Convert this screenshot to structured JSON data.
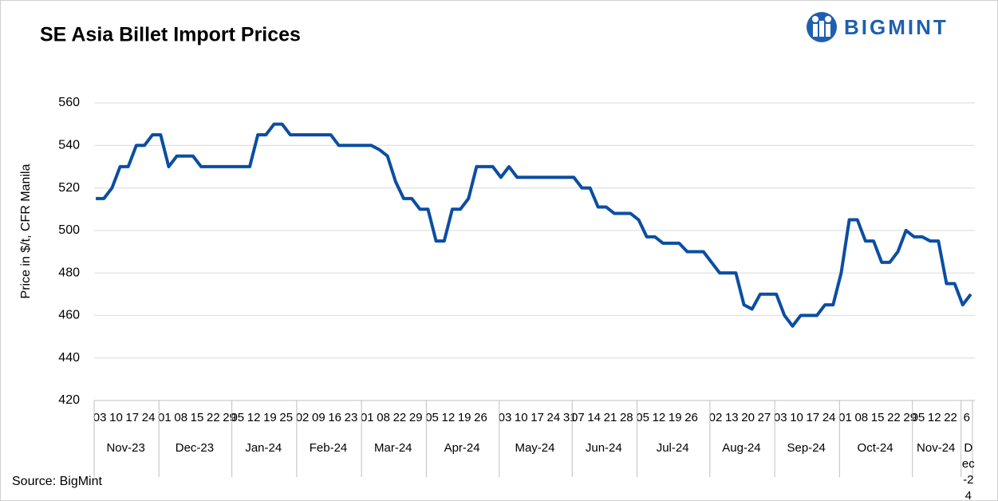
{
  "brand": "BIGMINT",
  "source": "Source: BigMint",
  "chart_data": {
    "type": "line",
    "title": "SE Asia Billet Import Prices",
    "y_label": "Price in $/t, CFR Manila",
    "categories": [
      "03",
      null,
      "10",
      null,
      "17",
      null,
      "24",
      null,
      "01",
      null,
      "08",
      null,
      "15",
      null,
      "22",
      null,
      "29",
      "05",
      null,
      "12",
      null,
      "19",
      null,
      "25",
      null,
      "02",
      null,
      "09",
      null,
      "16",
      null,
      "23",
      null,
      "01",
      null,
      "08",
      null,
      "22",
      null,
      "29",
      null,
      "05",
      null,
      "12",
      null,
      "19",
      null,
      "26",
      null,
      null,
      "03",
      null,
      "10",
      null,
      "17",
      null,
      "24",
      null,
      "31",
      "07",
      null,
      "14",
      null,
      "21",
      null,
      "28",
      null,
      "05",
      null,
      "12",
      null,
      "19",
      null,
      "26",
      null,
      null,
      "02",
      null,
      "13",
      null,
      "20",
      null,
      "27",
      null,
      "03",
      null,
      "10",
      null,
      "17",
      null,
      "24",
      null,
      "01",
      null,
      "08",
      null,
      "15",
      null,
      "22",
      null,
      "29",
      "05",
      null,
      "12",
      null,
      "22",
      null,
      "6",
      null
    ],
    "months": [
      "Nov-23",
      null,
      null,
      null,
      null,
      null,
      null,
      null,
      "Dec-23",
      null,
      null,
      null,
      null,
      null,
      null,
      null,
      null,
      "Jan-24",
      null,
      null,
      null,
      null,
      null,
      null,
      null,
      "Feb-24",
      null,
      null,
      null,
      null,
      null,
      null,
      null,
      "Mar-24",
      null,
      null,
      null,
      null,
      null,
      null,
      null,
      "Apr-24",
      null,
      null,
      null,
      null,
      null,
      null,
      null,
      null,
      "May-24",
      null,
      null,
      null,
      null,
      null,
      null,
      null,
      null,
      "Jun-24",
      null,
      null,
      null,
      null,
      null,
      null,
      null,
      "Jul-24",
      null,
      null,
      null,
      null,
      null,
      null,
      null,
      null,
      "Aug-24",
      null,
      null,
      null,
      null,
      null,
      null,
      null,
      "Sep-24",
      null,
      null,
      null,
      null,
      null,
      null,
      null,
      "Oct-24",
      null,
      null,
      null,
      null,
      null,
      null,
      null,
      null,
      "Nov-24",
      null,
      null,
      null,
      null,
      null,
      "Dec-24",
      null
    ],
    "series": [
      {
        "name": "Price",
        "color": "#0b4ea2",
        "values": [
          515,
          515,
          520,
          530,
          530,
          540,
          540,
          545,
          545,
          530,
          535,
          535,
          535,
          530,
          530,
          530,
          530,
          530,
          530,
          530,
          545,
          545,
          550,
          550,
          545,
          545,
          545,
          545,
          545,
          545,
          540,
          540,
          540,
          540,
          540,
          538,
          535,
          523,
          515,
          515,
          510,
          510,
          495,
          495,
          510,
          510,
          515,
          530,
          530,
          530,
          525,
          530,
          525,
          525,
          525,
          525,
          525,
          525,
          525,
          525,
          520,
          520,
          511,
          511,
          508,
          508,
          508,
          505,
          497,
          497,
          494,
          494,
          494,
          490,
          490,
          490,
          485,
          480,
          480,
          480,
          465,
          463,
          470,
          470,
          470,
          460,
          455,
          460,
          460,
          460,
          465,
          465,
          480,
          505,
          505,
          495,
          495,
          485,
          485,
          490,
          500,
          497,
          497,
          495,
          495,
          475,
          475,
          465,
          470
        ]
      }
    ],
    "ylim": [
      420,
      560
    ],
    "yticks": [
      420,
      440,
      460,
      480,
      500,
      520,
      540,
      560
    ],
    "grid": true
  }
}
